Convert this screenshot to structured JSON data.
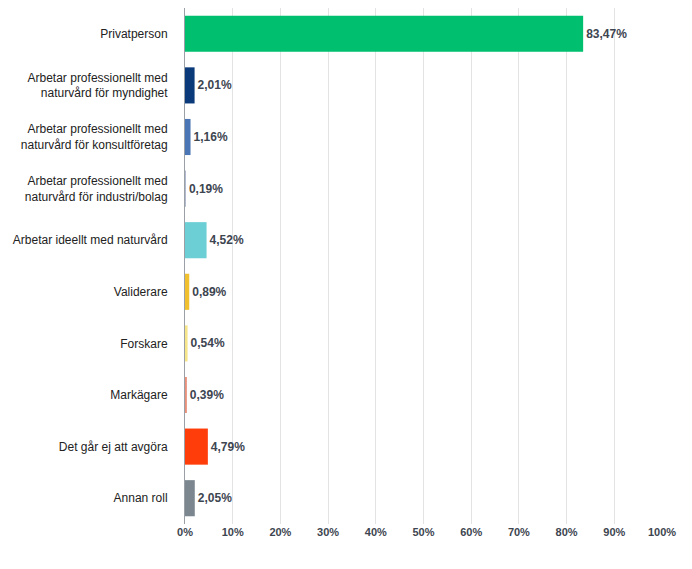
{
  "chart_data": {
    "type": "bar",
    "orientation": "horizontal",
    "categories": [
      "Privatperson",
      "Arbetar professionellt med naturvård för myndighet",
      "Arbetar professionellt med naturvård för konsultföretag",
      "Arbetar professionellt med naturvård för industri/bolag",
      "Arbetar ideellt med naturvård",
      "Validerare",
      "Forskare",
      "Markägare",
      "Det går ej att avgöra",
      "Annan roll"
    ],
    "values": [
      83.47,
      2.01,
      1.16,
      0.19,
      4.52,
      0.89,
      0.54,
      0.39,
      4.79,
      2.05
    ],
    "value_labels": [
      "83,47%",
      "2,01%",
      "1,16%",
      "0,19%",
      "4,52%",
      "0,89%",
      "0,54%",
      "0,39%",
      "4,79%",
      "2,05%"
    ],
    "colors": [
      "#00bf6f",
      "#0b3a7a",
      "#4a76b5",
      "#a9b3c9",
      "#6ccfd6",
      "#f0c02e",
      "#f7e58a",
      "#e8907a",
      "#ff3d0a",
      "#7b868f"
    ],
    "xlim": [
      0,
      100
    ],
    "xticks": [
      {
        "value": 0,
        "label": "0%"
      },
      {
        "value": 10,
        "label": "10%"
      },
      {
        "value": 20,
        "label": "20%"
      },
      {
        "value": 30,
        "label": "30%"
      },
      {
        "value": 40,
        "label": "40%"
      },
      {
        "value": 50,
        "label": "50%"
      },
      {
        "value": 60,
        "label": "60%"
      },
      {
        "value": 70,
        "label": "70%"
      },
      {
        "value": 80,
        "label": "80%"
      },
      {
        "value": 90,
        "label": "90%"
      },
      {
        "value": 100,
        "label": "100%"
      }
    ],
    "grid": true,
    "data_labels": true
  }
}
